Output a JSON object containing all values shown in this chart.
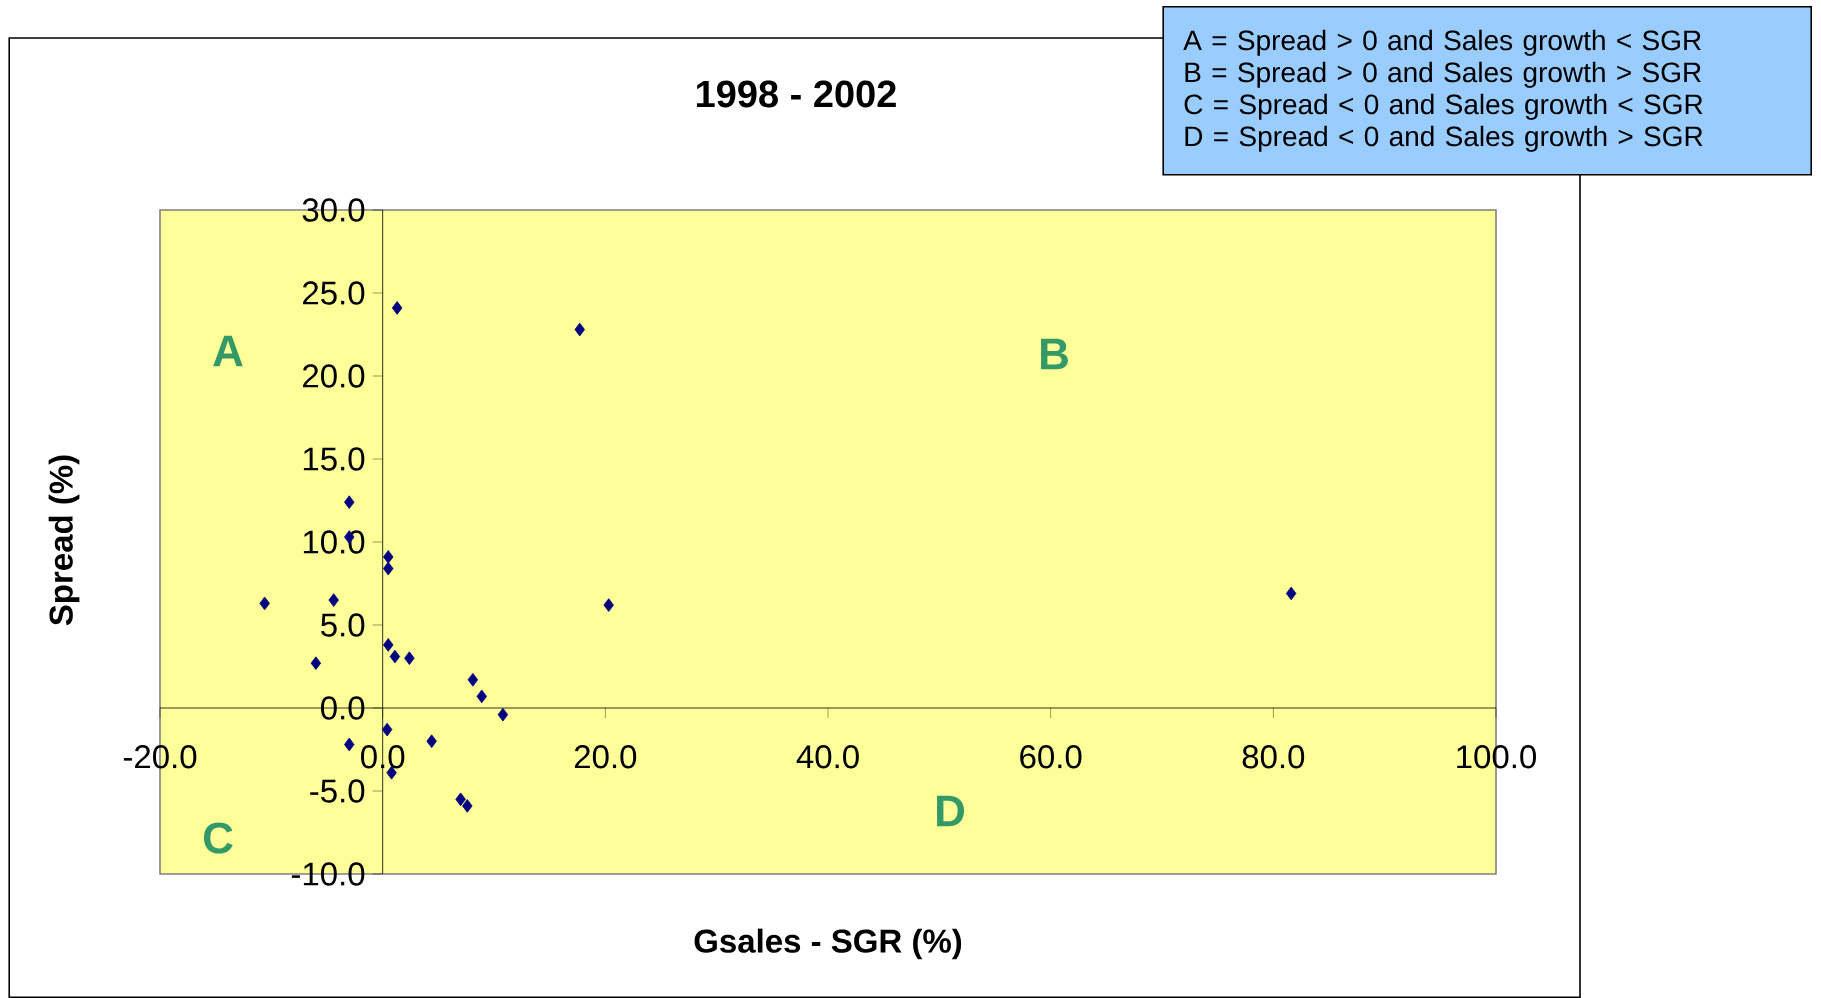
{
  "chart_data": {
    "type": "scatter",
    "title": "1998 - 2002",
    "xlabel": "Gsales - SGR (%)",
    "ylabel": "Spread (%)",
    "x": [
      1.3,
      17.7,
      -3.0,
      -3.0,
      0.5,
      0.5,
      -10.6,
      -4.4,
      20.3,
      81.6,
      0.5,
      1.1,
      2.4,
      -6.0,
      8.1,
      8.9,
      10.8,
      0.4,
      -3.0,
      4.4,
      0.8,
      7.0,
      7.6
    ],
    "values": [
      24.1,
      22.8,
      12.4,
      10.3,
      9.1,
      8.4,
      6.3,
      6.5,
      6.2,
      6.9,
      3.8,
      3.1,
      3.0,
      2.7,
      1.7,
      0.7,
      -0.4,
      -1.3,
      -2.2,
      -2.0,
      -3.9,
      -5.5,
      -5.9
    ],
    "color": "#000080",
    "marker": "diamond",
    "xlim": [
      -20,
      100
    ],
    "ylim": [
      -10,
      30
    ],
    "xticks": [
      {
        "value": -20,
        "label": "-20.0"
      },
      {
        "value": 0,
        "label": "0.0"
      },
      {
        "value": 20,
        "label": "20.0"
      },
      {
        "value": 40,
        "label": "40.0"
      },
      {
        "value": 60,
        "label": "60.0"
      },
      {
        "value": 80,
        "label": "80.0"
      },
      {
        "value": 100,
        "label": "100.0"
      }
    ],
    "yticks": [
      {
        "value": -10,
        "label": "-10.0"
      },
      {
        "value": -5,
        "label": "-5.0"
      },
      {
        "value": 0,
        "label": "0.0"
      },
      {
        "value": 5,
        "label": "5.0"
      },
      {
        "value": 10,
        "label": "10.0"
      },
      {
        "value": 15,
        "label": "15.0"
      },
      {
        "value": 20,
        "label": "20.0"
      },
      {
        "value": 25,
        "label": "25.0"
      },
      {
        "value": 30,
        "label": "30.0"
      }
    ],
    "annotations": [
      "A",
      "B",
      "C",
      "D",
      "A = Spread > 0 and Sales growth < SGR",
      "B = Spread > 0 and Sales growth > SGR",
      "C = Spread < 0 and Sales growth < SGR",
      "D = Spread < 0 and Sales growth > SGR"
    ]
  }
}
